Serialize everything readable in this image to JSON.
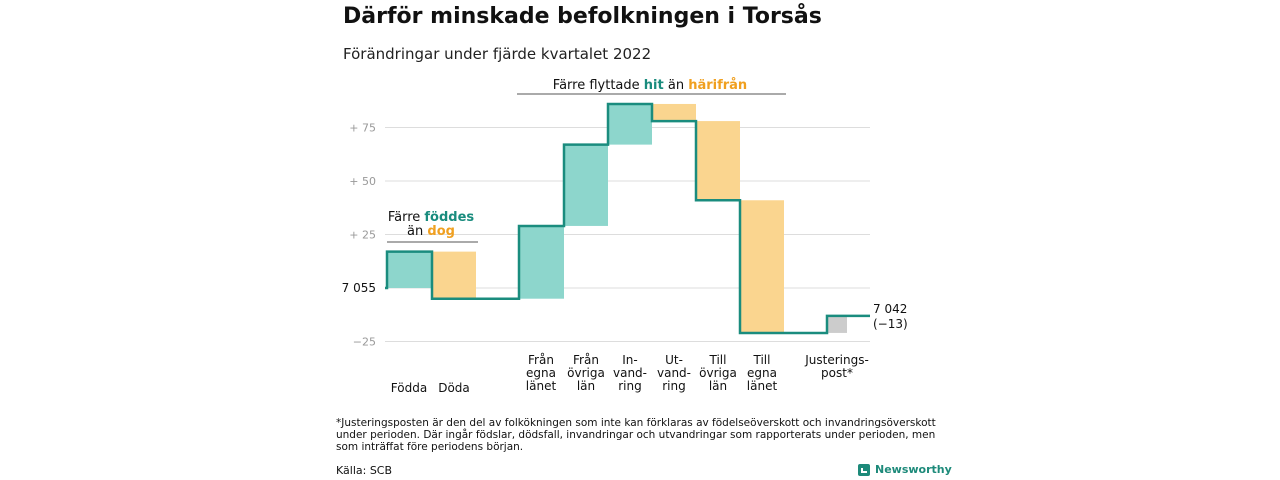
{
  "header": {
    "title": "Därför minskade befolkningen i Torsås",
    "subtitle": "Förändringar under fjärde kvartalet 2022"
  },
  "chart_data": {
    "type": "waterfall",
    "start_label": "7 055",
    "end_label": "7 042",
    "end_change_label": "(−13)",
    "yticks": [
      {
        "value": 75,
        "label": "+ 75"
      },
      {
        "value": 50,
        "label": "+ 50"
      },
      {
        "value": 25,
        "label": "+ 25"
      },
      {
        "value": -25,
        "label": "−25"
      }
    ],
    "ylim": [
      -30,
      90
    ],
    "steps": [
      {
        "label": "Födda",
        "from": 0,
        "to": 17,
        "kind": "plus"
      },
      {
        "label": "Döda",
        "from": 17,
        "to": -5,
        "kind": "minus"
      },
      {
        "label": "Från egna länet",
        "from": -5,
        "to": 29,
        "kind": "plus"
      },
      {
        "label": "Från övriga län",
        "from": 29,
        "to": 67,
        "kind": "plus"
      },
      {
        "label": "In- vand- ring",
        "from": 67,
        "to": 86,
        "kind": "plus"
      },
      {
        "label": "Ut- vand- ring",
        "from": 86,
        "to": 78,
        "kind": "minus"
      },
      {
        "label": "Till övriga län",
        "from": 78,
        "to": 41,
        "kind": "minus"
      },
      {
        "label": "Till egna länet",
        "from": 41,
        "to": -21,
        "kind": "minus"
      },
      {
        "label": "Justerings- post*",
        "from": -21,
        "to": -13,
        "kind": "adjust"
      }
    ],
    "category_lines": [
      [
        "Födda"
      ],
      [
        "Döda"
      ],
      [
        "Från",
        "egna",
        "länet"
      ],
      [
        "Från",
        "övriga",
        "län"
      ],
      [
        "In-",
        "vand-",
        "ring"
      ],
      [
        "Ut-",
        "vand-",
        "ring"
      ],
      [
        "Till",
        "övriga",
        "län"
      ],
      [
        "Till",
        "egna",
        "länet"
      ],
      [
        "Justerings-",
        "post*"
      ]
    ],
    "annotation_birth": {
      "line1_prefix": "Färre ",
      "line1_hl": "föddes",
      "line2_prefix": "än ",
      "line2_hl": "dog"
    },
    "annotation_migration": {
      "prefix": "Färre flyttade ",
      "hl1": "hit",
      "middle": " än ",
      "hl2": "härifrån"
    },
    "colors": {
      "line": "#1a8c7e",
      "plus": "#8dd6cc",
      "minus": "#fad58f",
      "adjust": "#cccccc",
      "grid": "#dddddd",
      "tick": "#999999",
      "hl_plus": "#1a8c7e",
      "hl_minus": "#f0a020"
    }
  },
  "footer": {
    "footnote": "*Justeringsposten är den del av folkökningen som inte kan förklaras av födelseöverskott och invandringsöverskott under perioden. Där ingår födslar, dödsfall, invandringar och utvandringar som rapporterats under perioden, men som inträffat före periodens början.",
    "source": "Källa: SCB",
    "brand": "Newsworthy",
    "brand_icon": "chart-icon"
  }
}
